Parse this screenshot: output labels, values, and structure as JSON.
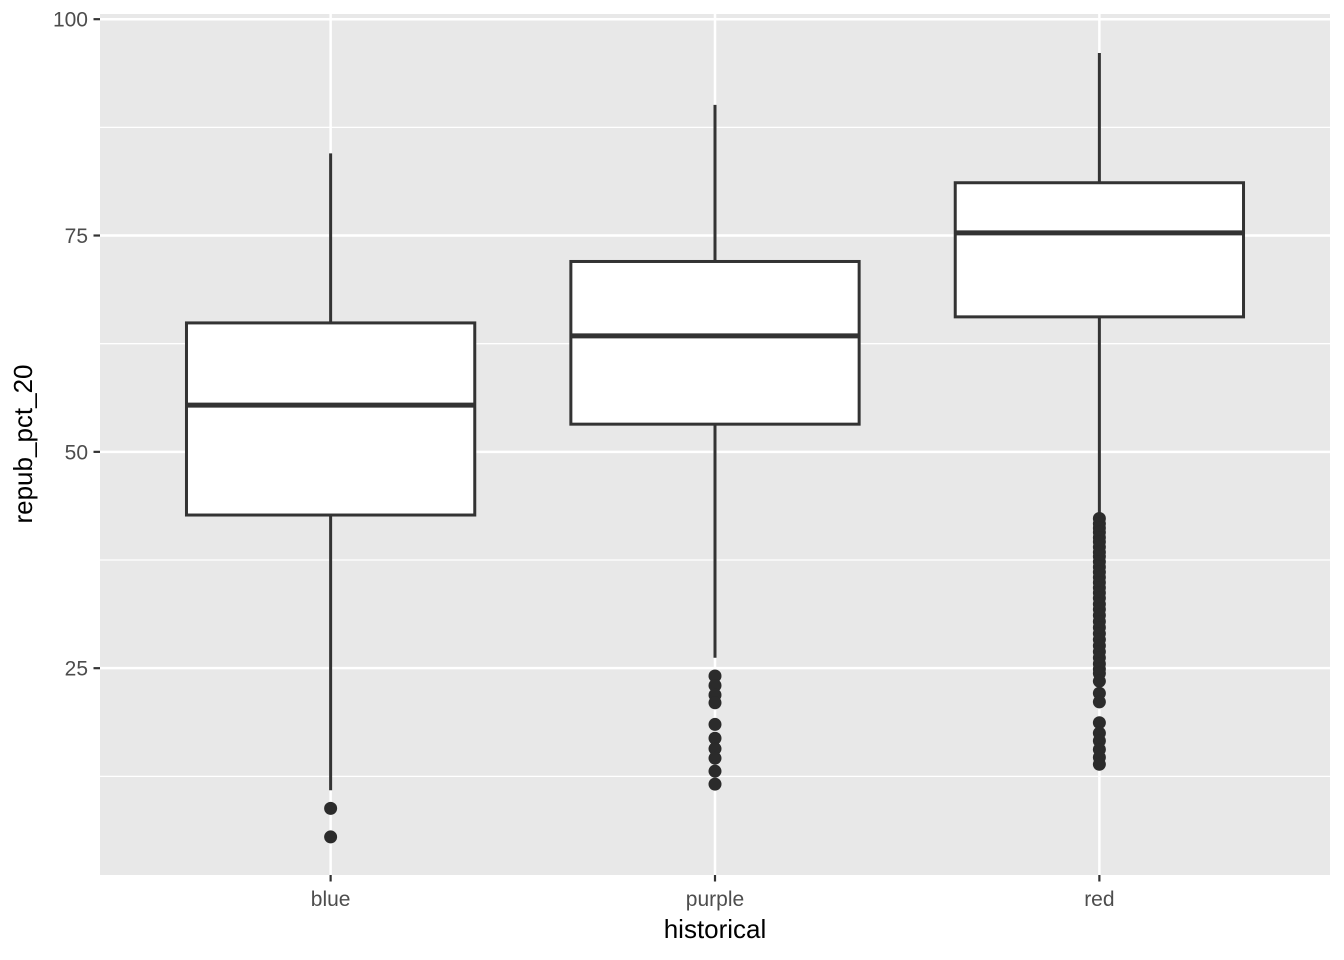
{
  "chart_data": {
    "type": "boxplot",
    "title": "",
    "xlabel": "historical",
    "ylabel": "repub_pct_20",
    "categories": [
      "blue",
      "purple",
      "red"
    ],
    "x_domain": [
      0.4,
      3.6
    ],
    "box_width": 0.75,
    "ylim": [
      1.1,
      100.6
    ],
    "y_major_ticks": [
      25,
      50,
      75,
      100
    ],
    "y_minor_ticks": [
      12.5,
      37.5,
      62.5,
      87.5
    ],
    "grid": "major-and-minor, white on grey panel",
    "legend_position": "none",
    "boxes": [
      {
        "category": "blue",
        "whisker_low": 10.9,
        "q1": 42.7,
        "median": 55.4,
        "q3": 64.9,
        "whisker_high": 84.5,
        "outliers": [
          8.8,
          5.5
        ]
      },
      {
        "category": "purple",
        "whisker_low": 26.2,
        "q1": 53.2,
        "median": 63.4,
        "q3": 72.0,
        "whisker_high": 90.1,
        "outliers": [
          24.1,
          23.0,
          21.9,
          21.0,
          18.5,
          16.9,
          15.7,
          14.6,
          13.1,
          11.6
        ]
      },
      {
        "category": "red",
        "whisker_low": 42.4,
        "q1": 65.6,
        "median": 75.3,
        "q3": 81.1,
        "whisker_high": 96.1,
        "outliers": [
          42.3,
          41.7,
          41.2,
          40.7,
          40.1,
          39.6,
          39.0,
          38.4,
          37.9,
          37.3,
          36.7,
          36.1,
          35.5,
          34.9,
          34.3,
          33.7,
          33.1,
          32.4,
          31.8,
          31.1,
          30.4,
          29.7,
          29.0,
          28.3,
          27.6,
          26.9,
          26.2,
          25.5,
          24.9,
          24.4,
          23.5,
          22.1,
          21.1,
          18.7,
          17.5,
          16.6,
          15.6,
          14.7,
          13.9
        ]
      }
    ],
    "colors": {
      "panel_bg": "#E8E8E8",
      "grid_major": "#FFFFFF",
      "grid_minor": "#FFFFFF",
      "box_stroke": "#333333",
      "box_fill": "#FFFFFF",
      "median_stroke": "#333333",
      "whisker_stroke": "#333333",
      "outlier_fill": "#2B2B2B",
      "tick_mark": "#333333",
      "tick_label": "#4D4D4D",
      "axis_title": "#000000"
    }
  }
}
